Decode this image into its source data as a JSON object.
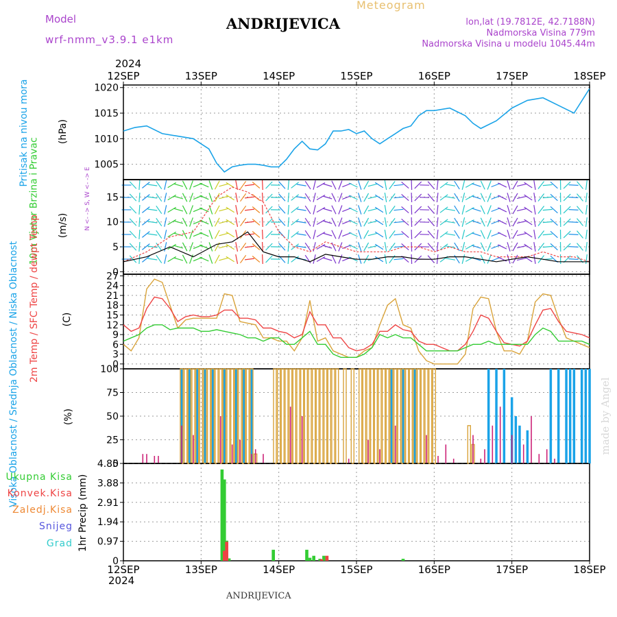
{
  "header": {
    "model_label": "Model",
    "model_name": "wrf-nmm_v3.9.1 e1km",
    "title": "ANDRIJEVICA",
    "meteogram": "Meteogram",
    "lonlat": "lon,lat (19.7812E, 42.7188N)",
    "elev": "Nadmorska Visina 779m",
    "elev_model": "Nadmorska Visina u modelu 1045.44m",
    "watermark": "made by Angel",
    "footer": "ANDRIJEVICA"
  },
  "colors": {
    "pressure": "#1aa3e8",
    "temp2m": "#ee4444",
    "sfc": "#d9a33a",
    "dewpt": "#33cc33",
    "high_cloud": "#1aa3e8",
    "mid_cloud": "#d9a33a",
    "low_cloud": "#cc2277",
    "total_rain": "#33cc33",
    "conv_rain": "#ee4444",
    "frz_rain": "#ee8833",
    "snow": "#5555dd",
    "hail": "#33cccc",
    "axis_label": "#aa44cc"
  },
  "xaxis": {
    "year": "2024",
    "ticks": [
      "12SEP",
      "13SEP",
      "14SEP",
      "15SEP",
      "16SEP",
      "17SEP",
      "18SEP"
    ]
  },
  "chart_data": [
    {
      "type": "line",
      "id": "pressure",
      "ylabel": "Pritisak na nivou mora",
      "unit": "(hPa)",
      "ylim": [
        1002,
        1020.5
      ],
      "yticks": [
        1005,
        1010,
        1015,
        1020
      ],
      "x_unit": "days from 12SEP 00h",
      "x": [
        0,
        0.15,
        0.3,
        0.5,
        0.7,
        0.9,
        1.0,
        1.1,
        1.2,
        1.3,
        1.4,
        1.5,
        1.6,
        1.7,
        1.8,
        1.9,
        2.0,
        2.1,
        2.2,
        2.3,
        2.4,
        2.5,
        2.6,
        2.7,
        2.8,
        2.9,
        3.0,
        3.1,
        3.2,
        3.3,
        3.4,
        3.5,
        3.6,
        3.7,
        3.8,
        3.9,
        4.0,
        4.2,
        4.4,
        4.5,
        4.6,
        4.8,
        5.0,
        5.2,
        5.4,
        5.6,
        5.8,
        6.0
      ],
      "series": [
        {
          "name": "pritisak",
          "values": [
            1011.5,
            1012.2,
            1012.5,
            1011,
            1010.5,
            1010,
            1009,
            1008,
            1005.2,
            1003.5,
            1004.5,
            1004.8,
            1005,
            1005,
            1004.8,
            1004.5,
            1004.5,
            1006,
            1008,
            1009.5,
            1008,
            1007.8,
            1009,
            1011.5,
            1011.5,
            1011.8,
            1011,
            1011.5,
            1010,
            1009,
            1010,
            1011,
            1012,
            1012.5,
            1014.5,
            1015.5,
            1015.5,
            1016,
            1014.5,
            1013,
            1012,
            1013.5,
            1016,
            1017.5,
            1018,
            1016.5,
            1015,
            1019.8
          ]
        }
      ]
    },
    {
      "type": "line",
      "id": "wind",
      "ylabel": "10m Vjetar Brzina i Pravac",
      "unit": "(m/s)",
      "ylim": [
        -0.5,
        18.5
      ],
      "yticks": [
        0,
        5,
        10,
        15
      ],
      "compass": "N <- -> S, W <- -> E",
      "x_unit": "days from 12SEP 00h",
      "x": [
        0,
        0.3,
        0.6,
        0.9,
        1.2,
        1.4,
        1.6,
        1.8,
        2.0,
        2.2,
        2.4,
        2.6,
        2.8,
        3.0,
        3.2,
        3.4,
        3.6,
        3.8,
        4.0,
        4.2,
        4.4,
        4.6,
        4.8,
        5.0,
        5.2,
        5.4,
        5.6,
        5.8,
        6.0
      ],
      "series": [
        {
          "name": "brzina",
          "values": [
            2,
            3,
            5,
            3,
            5.5,
            6,
            8,
            4,
            3,
            3,
            2,
            3.5,
            3,
            2.5,
            2.5,
            3,
            3,
            2.5,
            2.5,
            3,
            3,
            2.5,
            2,
            2.5,
            3,
            2.5,
            2,
            2,
            2
          ]
        },
        {
          "name": "udari",
          "values": [
            2,
            4,
            7,
            8,
            15,
            17,
            16,
            14,
            8,
            5,
            4,
            6,
            5,
            4,
            4,
            4,
            5,
            5,
            4,
            5,
            4,
            4,
            3,
            3,
            3,
            4,
            3,
            3,
            2
          ]
        }
      ]
    },
    {
      "type": "line",
      "id": "temp",
      "ylabel": "2m Temp / SFC Temp / dewpt Temp",
      "unit": "(C)",
      "ylim": [
        -1.5,
        27.5
      ],
      "yticks": [
        0,
        3,
        6,
        9,
        12,
        15,
        18,
        21,
        24,
        27
      ],
      "x_unit": "days from 12SEP 00h",
      "x": [
        0,
        0.1,
        0.2,
        0.3,
        0.4,
        0.5,
        0.6,
        0.7,
        0.8,
        0.9,
        1.0,
        1.1,
        1.2,
        1.3,
        1.4,
        1.5,
        1.6,
        1.7,
        1.8,
        1.9,
        2.0,
        2.1,
        2.2,
        2.3,
        2.4,
        2.5,
        2.6,
        2.7,
        2.8,
        2.9,
        3.0,
        3.1,
        3.2,
        3.3,
        3.4,
        3.5,
        3.6,
        3.7,
        3.8,
        3.9,
        4.0,
        4.1,
        4.2,
        4.3,
        4.4,
        4.5,
        4.6,
        4.7,
        4.8,
        4.9,
        5.0,
        5.1,
        5.2,
        5.3,
        5.4,
        5.5,
        5.6,
        5.7,
        5.8,
        5.9,
        6.0
      ],
      "series": [
        {
          "name": "2m Temp",
          "values": [
            12,
            10,
            11,
            17,
            20.5,
            20,
            17,
            13,
            14.5,
            15,
            14.5,
            14.5,
            15,
            16.5,
            16.5,
            14,
            14,
            13.5,
            11,
            11,
            10,
            9.5,
            8,
            9,
            16,
            12,
            12,
            8,
            8,
            5,
            4,
            4.5,
            6,
            10,
            10,
            12,
            10.5,
            10,
            7,
            6,
            6,
            5,
            4,
            4,
            6,
            10,
            15,
            14,
            10,
            6.5,
            6,
            5.5,
            7,
            12,
            16.5,
            17,
            13,
            10,
            9.5,
            9,
            8
          ]
        },
        {
          "name": "SFC Temp",
          "values": [
            6,
            4,
            8,
            23,
            26,
            25,
            18,
            11,
            13.5,
            14,
            14,
            14,
            14,
            21.5,
            21,
            13,
            12.5,
            12,
            8,
            8,
            7,
            7,
            4,
            8,
            19.5,
            7,
            8,
            4,
            3,
            2,
            2,
            4,
            5,
            12,
            18,
            20,
            12,
            11,
            4,
            1,
            0,
            0,
            0,
            0,
            3,
            17,
            20.5,
            20,
            10,
            4,
            4,
            3,
            7,
            19,
            21.5,
            21,
            14,
            8,
            7,
            6,
            5
          ]
        },
        {
          "name": "dewpt Temp",
          "values": [
            7,
            8,
            9,
            11,
            12,
            12,
            10.5,
            11,
            11,
            11,
            10,
            10,
            10.5,
            10,
            9.5,
            9,
            8,
            8,
            7,
            8,
            8,
            6,
            6,
            8,
            10,
            6,
            6,
            3,
            2,
            2,
            2,
            3,
            5,
            9,
            8,
            9,
            8,
            8,
            6,
            4,
            4,
            4,
            4,
            4,
            5,
            6,
            6,
            7,
            6,
            6,
            6,
            6,
            6,
            9,
            11,
            10,
            7,
            7,
            7,
            7,
            6
          ]
        }
      ]
    },
    {
      "type": "bar",
      "id": "clouds",
      "ylabel": "Visoka Oblacnost / Srednja Oblacnost / Niska Oblacnost",
      "unit": "(%)",
      "ylim": [
        0,
        100
      ],
      "yticks": [
        0,
        25,
        50,
        75,
        100
      ],
      "x_unit": "days from 12SEP 00h",
      "series": [
        {
          "name": "Visoka Oblacnost",
          "x": [
            0.75,
            0.85,
            0.95,
            1.05,
            1.15,
            1.3,
            1.45,
            1.55,
            1.65,
            3.45,
            3.6,
            3.75,
            4.7,
            4.8,
            4.9,
            5.0,
            5.05,
            5.1,
            5.2,
            5.5,
            5.6,
            5.7,
            5.75,
            5.8,
            5.9,
            5.95,
            6.0
          ],
          "values": [
            100,
            100,
            100,
            100,
            100,
            100,
            100,
            100,
            100,
            100,
            100,
            100,
            100,
            100,
            100,
            70,
            50,
            40,
            35,
            100,
            100,
            100,
            100,
            100,
            100,
            100,
            100
          ]
        },
        {
          "name": "Srednja Oblacnost",
          "x": [
            0.75,
            0.8,
            0.85,
            0.9,
            0.95,
            1.0,
            1.05,
            1.1,
            1.15,
            1.2,
            1.25,
            1.3,
            1.35,
            1.4,
            1.45,
            1.5,
            1.55,
            1.6,
            1.65,
            1.7,
            1.95,
            2.0,
            2.05,
            2.1,
            2.15,
            2.2,
            2.25,
            2.3,
            2.35,
            2.4,
            2.45,
            2.5,
            2.55,
            2.6,
            2.65,
            2.7,
            2.75,
            2.85,
            2.95,
            3.05,
            3.1,
            3.15,
            3.2,
            3.25,
            3.3,
            3.35,
            3.4,
            3.45,
            3.5,
            3.55,
            3.6,
            3.65,
            3.7,
            3.75,
            3.8,
            3.85,
            3.9,
            3.95,
            4.0,
            4.45,
            4.5
          ],
          "values": [
            100,
            100,
            100,
            100,
            100,
            100,
            100,
            100,
            100,
            100,
            100,
            100,
            100,
            100,
            100,
            100,
            100,
            100,
            100,
            10,
            100,
            100,
            100,
            100,
            100,
            100,
            100,
            100,
            100,
            100,
            100,
            100,
            100,
            100,
            100,
            100,
            100,
            100,
            100,
            100,
            100,
            100,
            100,
            100,
            100,
            100,
            100,
            100,
            100,
            100,
            100,
            100,
            100,
            100,
            100,
            100,
            100,
            100,
            100,
            40,
            20
          ]
        },
        {
          "name": "Niska Oblacnost",
          "x": [
            0.25,
            0.3,
            0.4,
            0.45,
            0.75,
            0.9,
            1.25,
            1.4,
            1.5,
            1.65,
            1.7,
            1.8,
            2.15,
            2.3,
            2.9,
            3.15,
            3.3,
            3.5,
            3.9,
            4.05,
            4.15,
            4.25,
            4.5,
            4.6,
            4.65,
            4.75,
            4.85,
            5.0,
            5.15,
            5.25,
            5.35,
            5.45,
            5.55
          ],
          "values": [
            10,
            10,
            8,
            8,
            40,
            30,
            50,
            20,
            25,
            10,
            15,
            10,
            60,
            50,
            5,
            25,
            15,
            40,
            30,
            8,
            20,
            5,
            30,
            5,
            15,
            40,
            60,
            30,
            20,
            50,
            10,
            15,
            5
          ]
        }
      ]
    },
    {
      "type": "bar",
      "id": "precip",
      "ylabel": "1hr Precip",
      "unit": "(mm)",
      "ylim": [
        0,
        4.85
      ],
      "yticks": [
        0,
        0.97,
        1.94,
        2.91,
        3.88,
        4.85
      ],
      "x_unit": "days from 12SEP 00h",
      "legend": [
        "Ukupna Kisa",
        "Konvek.Kisa",
        "Zaledj.Kisa",
        "Snijeg",
        "Grad"
      ],
      "series": [
        {
          "name": "Ukupna Kisa",
          "x": [
            1.27,
            1.3,
            1.33,
            1.36,
            1.93,
            2.36,
            2.4,
            2.45,
            2.53,
            2.58,
            2.62,
            3.6
          ],
          "values": [
            4.55,
            4.05,
            1.0,
            0.12,
            0.55,
            0.55,
            0.15,
            0.25,
            0.1,
            0.25,
            0.1,
            0.1
          ]
        },
        {
          "name": "Konvek.Kisa",
          "x": [
            1.3,
            1.33,
            2.55,
            2.62
          ],
          "values": [
            0.5,
            0.95,
            0.08,
            0.25
          ]
        },
        {
          "name": "Zaledj.Kisa",
          "x": [],
          "values": []
        },
        {
          "name": "Snijeg",
          "x": [],
          "values": []
        },
        {
          "name": "Grad",
          "x": [],
          "values": []
        }
      ]
    }
  ]
}
